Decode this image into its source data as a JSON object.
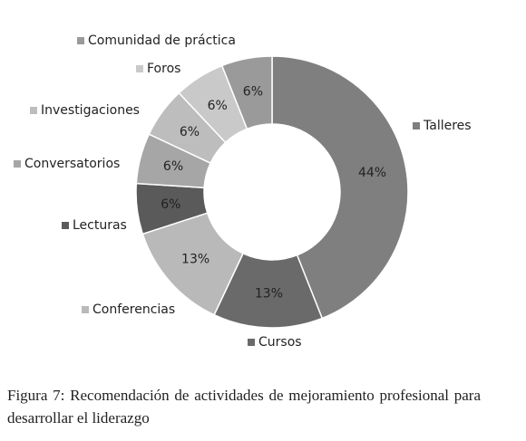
{
  "chart_data": {
    "type": "donut",
    "categories": [
      "Talleres",
      "Cursos",
      "Conferencias",
      "Lecturas",
      "Conversatorios",
      "Investigaciones",
      "Foros",
      "Comunidad de práctica"
    ],
    "values": [
      44,
      13,
      13,
      6,
      6,
      6,
      6,
      6
    ],
    "value_labels": [
      "44%",
      "13%",
      "13%",
      "6%",
      "6%",
      "6%",
      "6%",
      "6%"
    ],
    "colors": [
      "#7f7f7f",
      "#6a6a6a",
      "#b9b9b9",
      "#5a5a5a",
      "#a6a6a6",
      "#bdbdbd",
      "#c9c9c9",
      "#9a9a9a"
    ],
    "caption": "Figura 7: Recomendación de actividades de mejoramiento profesional para desarrollar el liderazgo"
  }
}
